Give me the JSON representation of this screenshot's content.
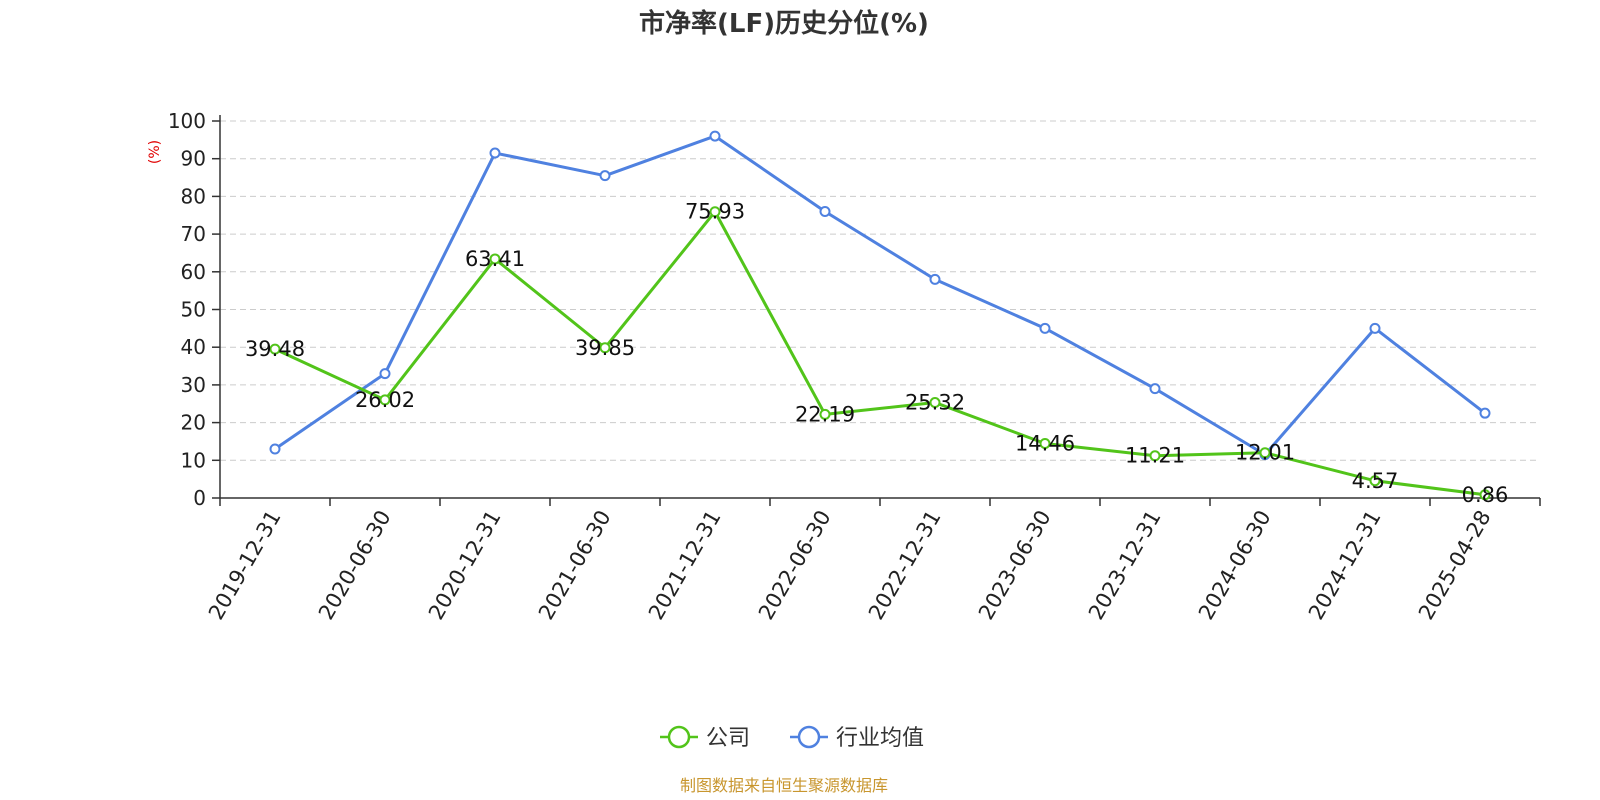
{
  "colors": {
    "company": "#52c41a",
    "industry": "#4f81e0",
    "unit_label": "#e00000",
    "source": "#c8962e",
    "grid": "#cccccc",
    "axis": "#333333"
  },
  "footer": {
    "source": "制图数据来自恒生聚源数据库"
  },
  "chart_data": {
    "type": "line",
    "title": "市净率(LF)历史分位(%)",
    "ylabel": "(%)",
    "xlabel": "",
    "ylim": [
      0,
      100
    ],
    "yticks": [
      0,
      10,
      20,
      30,
      40,
      50,
      60,
      70,
      80,
      90,
      100
    ],
    "grid": true,
    "legend_position": "bottom-center",
    "categories": [
      "2019-12-31",
      "2020-06-30",
      "2020-12-31",
      "2021-06-30",
      "2021-12-31",
      "2022-06-30",
      "2022-12-31",
      "2023-06-30",
      "2023-12-31",
      "2024-06-30",
      "2024-12-31",
      "2025-04-28"
    ],
    "series": [
      {
        "name": "公司",
        "color": "#52c41a",
        "show_labels": true,
        "values": [
          39.48,
          26.02,
          63.41,
          39.85,
          75.93,
          22.19,
          25.32,
          14.46,
          11.21,
          12.01,
          4.57,
          0.86
        ],
        "labels": [
          "39.48",
          "26.02",
          "63.41",
          "39.85",
          "75.93",
          "22.19",
          "25.32",
          "14.46",
          "11.21",
          "12.01",
          "4.57",
          "0.86"
        ]
      },
      {
        "name": "行业均值",
        "color": "#4f81e0",
        "show_labels": false,
        "values": [
          13,
          33,
          91.5,
          85.5,
          96,
          76,
          58,
          45,
          29,
          11.5,
          45,
          22.5
        ]
      }
    ]
  }
}
